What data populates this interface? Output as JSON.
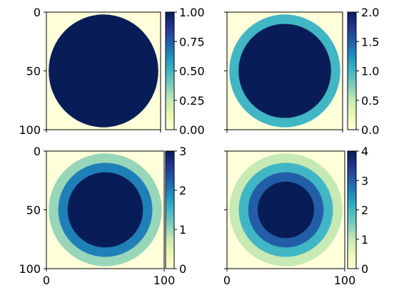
{
  "chart_data": [
    {
      "type": "heatmap",
      "image": {
        "xlim": [
          0,
          100
        ],
        "ylim": [
          100,
          0
        ],
        "disks": [
          {
            "radius": 48,
            "value": 1
          }
        ]
      },
      "center": [
        50,
        50
      ],
      "x_ticks": [],
      "y_ticks": [
        "0",
        "50",
        "100"
      ],
      "colorbar": {
        "range": [
          0,
          1
        ],
        "ticks": [
          "0.00",
          "0.25",
          "0.50",
          "0.75",
          "1.00"
        ],
        "tick_values": [
          0,
          0.25,
          0.5,
          0.75,
          1
        ]
      }
    },
    {
      "type": "heatmap",
      "image": {
        "xlim": [
          0,
          100
        ],
        "ylim": [
          100,
          0
        ],
        "disks": [
          {
            "radius": 48,
            "value": 1
          },
          {
            "radius": 40,
            "value": 2
          }
        ]
      },
      "center": [
        50,
        50
      ],
      "x_ticks": [],
      "y_ticks": [],
      "colorbar": {
        "range": [
          0,
          2
        ],
        "ticks": [
          "0.0",
          "0.5",
          "1.0",
          "1.5",
          "2.0"
        ],
        "tick_values": [
          0,
          0.5,
          1,
          1.5,
          2
        ]
      }
    },
    {
      "type": "heatmap",
      "image": {
        "xlim": [
          0,
          100
        ],
        "ylim": [
          100,
          0
        ],
        "disks": [
          {
            "radius": 48,
            "value": 1
          },
          {
            "radius": 40,
            "value": 2
          },
          {
            "radius": 32,
            "value": 3
          }
        ]
      },
      "center": [
        50,
        50
      ],
      "x_ticks": [
        "0",
        "100"
      ],
      "y_ticks": [
        "0",
        "50",
        "100"
      ],
      "colorbar": {
        "range": [
          0,
          3
        ],
        "ticks": [
          "0",
          "1",
          "2",
          "3"
        ],
        "tick_values": [
          0,
          1,
          2,
          3
        ]
      }
    },
    {
      "type": "heatmap",
      "image": {
        "xlim": [
          0,
          100
        ],
        "ylim": [
          100,
          0
        ],
        "disks": [
          {
            "radius": 48,
            "value": 1
          },
          {
            "radius": 40,
            "value": 2
          },
          {
            "radius": 32,
            "value": 3
          },
          {
            "radius": 24,
            "value": 4
          }
        ]
      },
      "center": [
        50,
        50
      ],
      "x_ticks": [
        "0",
        "100"
      ],
      "y_ticks": [],
      "colorbar": {
        "range": [
          0,
          4
        ],
        "ticks": [
          "0",
          "1",
          "2",
          "3",
          "4"
        ],
        "tick_values": [
          0,
          1,
          2,
          3,
          4
        ]
      }
    }
  ],
  "colormap": {
    "name": "YlGnBu",
    "stops": [
      "#ffffd9",
      "#edf8b1",
      "#c7e9b4",
      "#7fcdbb",
      "#41b6c4",
      "#1d91c0",
      "#225ea8",
      "#253494",
      "#081d58"
    ]
  }
}
